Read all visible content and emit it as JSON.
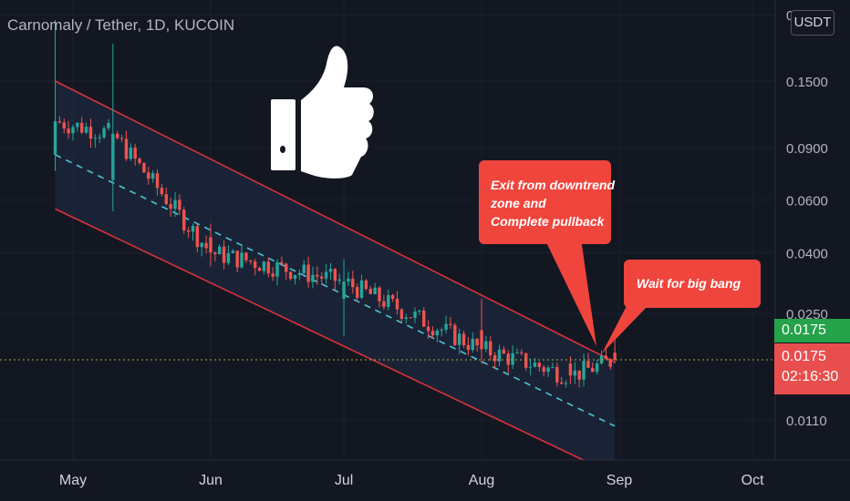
{
  "header": {
    "title": "Carnomaly / Tether, 1D, KUCOIN",
    "currency_button": "USDT"
  },
  "price_tags": {
    "last_close": "0.0175",
    "current_price": "0.0175",
    "countdown": "02:16:30"
  },
  "annotations": {
    "callout_1": [
      "Exit from downtrend",
      "zone and",
      "Complete pullback"
    ],
    "callout_2": "Wait for big bang",
    "thumbs_up_icon": "thumbs-up-icon"
  },
  "colors": {
    "background": "#131722",
    "up_candle": "#26a69a",
    "down_candle": "#ef5350",
    "channel_line": "#d8323a",
    "mid_line": "#4fc3d6",
    "callout_bg": "#f0453c",
    "tag_green": "#26a24a",
    "tag_red": "#e84e4e"
  },
  "chart_data": {
    "type": "candlestick",
    "symbol": "Carnomaly / Tether",
    "timeframe": "1D",
    "exchange": "KUCOIN",
    "y_scale": "log",
    "ylim": [
      0.0085,
      0.25
    ],
    "y_ticks": [
      "0.2500",
      "0.1500",
      "0.0900",
      "0.0600",
      "0.0400",
      "0.0250",
      "0.0110"
    ],
    "x_ticks": [
      "May",
      "Jun",
      "Jul",
      "Aug",
      "Sep",
      "Oct"
    ],
    "last_price": 0.0175,
    "downtrend_channel": {
      "upper": [
        {
          "date": "Apr 27",
          "value": 0.15
        },
        {
          "date": "Aug 31",
          "value": 0.0172
        }
      ],
      "middle": [
        {
          "date": "Apr 27",
          "value": 0.085
        },
        {
          "date": "Aug 31",
          "value": 0.0105
        }
      ],
      "lower": [
        {
          "date": "Apr 27",
          "value": 0.056
        },
        {
          "date": "Aug 31",
          "value": 0.0072
        }
      ]
    },
    "ohlc_approx": [
      {
        "date": "Apr 27",
        "open": 0.085,
        "high": 0.24,
        "low": 0.075,
        "close": 0.11
      },
      {
        "date": "May 10",
        "open": 0.07,
        "high": 0.2,
        "low": 0.055,
        "close": 0.1
      },
      {
        "date": "Jun 1",
        "open": 0.045,
        "high": 0.05,
        "low": 0.036,
        "close": 0.04
      },
      {
        "date": "Jul 1",
        "open": 0.028,
        "high": 0.038,
        "low": 0.021,
        "close": 0.032
      },
      {
        "date": "Aug 1",
        "open": 0.022,
        "high": 0.028,
        "low": 0.017,
        "close": 0.019
      },
      {
        "date": "Aug 21",
        "open": 0.017,
        "high": 0.018,
        "low": 0.0145,
        "close": 0.0155
      },
      {
        "date": "Aug 31",
        "open": 0.0185,
        "high": 0.021,
        "low": 0.017,
        "close": 0.0175
      }
    ]
  }
}
